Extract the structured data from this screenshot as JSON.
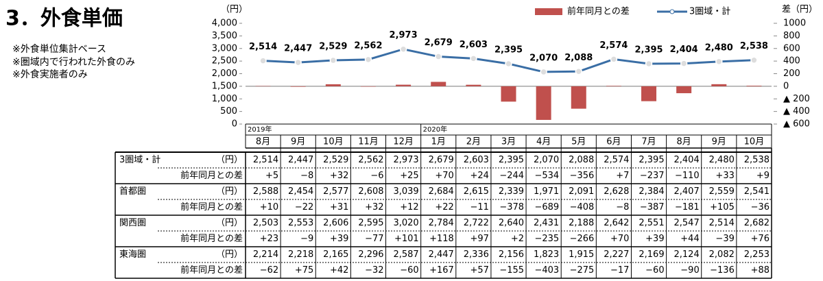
{
  "header": {
    "title": "3．外食単価",
    "notes": [
      "※外食単位集計ベース",
      "※圏域内で行われた外食のみ",
      "※外食実施者のみ"
    ]
  },
  "chart_data": {
    "type": "combo",
    "y_label": "（円）",
    "y2_label": "差（円）",
    "categories": [
      "8月",
      "9月",
      "10月",
      "11月",
      "12月",
      "1月",
      "2月",
      "3月",
      "4月",
      "5月",
      "6月",
      "7月",
      "8月",
      "9月",
      "10月"
    ],
    "years": [
      "2019年",
      null,
      null,
      null,
      null,
      "2020年",
      null,
      null,
      null,
      null,
      null,
      null,
      null,
      null,
      null
    ],
    "ylim": [
      0,
      4000
    ],
    "yticks": [
      0,
      500,
      {
        "value": 1000,
        "label": "1,000"
      },
      {
        "value": 1500,
        "label": "1,500"
      },
      {
        "value": 2000,
        "label": "2,000"
      },
      {
        "value": 2500,
        "label": "2,500"
      },
      {
        "value": 3000,
        "label": "3,000"
      },
      {
        "value": 3500,
        "label": "3,500"
      },
      {
        "value": 4000,
        "label": "4,000"
      }
    ],
    "y2lim": [
      -600,
      1000
    ],
    "y2ticks": [
      {
        "value": -600,
        "label": "▲ 600"
      },
      {
        "value": -400,
        "label": "▲ 400"
      },
      {
        "value": -200,
        "label": "▲ 200"
      },
      0,
      200,
      400,
      600,
      800,
      1000
    ],
    "series": [
      {
        "name": "前年同月との差",
        "type": "bar",
        "axis": "y2",
        "color": "#c0504d",
        "values": [
          5,
          -8,
          32,
          -6,
          25,
          70,
          24,
          -244,
          -534,
          -356,
          7,
          -237,
          -110,
          33,
          9
        ]
      },
      {
        "name": "3圏域・計",
        "type": "line",
        "color": "#3a6ea5",
        "values": [
          2514,
          2447,
          2529,
          2562,
          2973,
          2679,
          2603,
          2395,
          2070,
          2088,
          2574,
          2395,
          2404,
          2480,
          2538
        ],
        "value_labels": [
          "2,514",
          "2,447",
          "2,529",
          "2,562",
          "2,973",
          "2,679",
          "2,603",
          "2,395",
          "2,070",
          "2,088",
          "2,574",
          "2,395",
          "2,404",
          "2,480",
          "2,538"
        ]
      }
    ]
  },
  "table": {
    "groups": [
      {
        "name": "3圏域・計",
        "unit": "（円）",
        "values": [
          "2,514",
          "2,447",
          "2,529",
          "2,562",
          "2,973",
          "2,679",
          "2,603",
          "2,395",
          "2,070",
          "2,088",
          "2,574",
          "2,395",
          "2,404",
          "2,480",
          "2,538"
        ],
        "diff_name": "前年同月との差",
        "diffs": [
          "+5",
          "−8",
          "+32",
          "−6",
          "+25",
          "+70",
          "+24",
          "−244",
          "−534",
          "−356",
          "+7",
          "−237",
          "−110",
          "+33",
          "+9"
        ]
      },
      {
        "name": "首都圏",
        "unit": "（円）",
        "values": [
          "2,588",
          "2,454",
          "2,577",
          "2,608",
          "3,039",
          "2,684",
          "2,615",
          "2,339",
          "1,971",
          "2,091",
          "2,628",
          "2,384",
          "2,407",
          "2,559",
          "2,541"
        ],
        "diff_name": "前年同月との差",
        "diffs": [
          "+10",
          "−22",
          "+31",
          "+32",
          "+12",
          "+22",
          "−11",
          "−378",
          "−689",
          "−408",
          "−8",
          "−387",
          "−181",
          "+105",
          "−36"
        ]
      },
      {
        "name": "関西圏",
        "unit": "（円）",
        "values": [
          "2,503",
          "2,553",
          "2,606",
          "2,595",
          "3,020",
          "2,784",
          "2,722",
          "2,640",
          "2,431",
          "2,188",
          "2,642",
          "2,551",
          "2,547",
          "2,514",
          "2,682"
        ],
        "diff_name": "前年同月との差",
        "diffs": [
          "+23",
          "−9",
          "+39",
          "−77",
          "+101",
          "+118",
          "+97",
          "+2",
          "−235",
          "−266",
          "+70",
          "+39",
          "+44",
          "−39",
          "+76"
        ]
      },
      {
        "name": "東海圏",
        "unit": "（円）",
        "values": [
          "2,214",
          "2,218",
          "2,165",
          "2,296",
          "2,587",
          "2,447",
          "2,336",
          "2,156",
          "1,823",
          "1,915",
          "2,227",
          "2,169",
          "2,124",
          "2,082",
          "2,253"
        ],
        "diff_name": "前年同月との差",
        "diffs": [
          "−62",
          "+75",
          "+42",
          "−32",
          "−60",
          "+167",
          "+57",
          "−155",
          "−403",
          "−275",
          "−17",
          "−60",
          "−90",
          "−136",
          "+88"
        ]
      }
    ]
  }
}
